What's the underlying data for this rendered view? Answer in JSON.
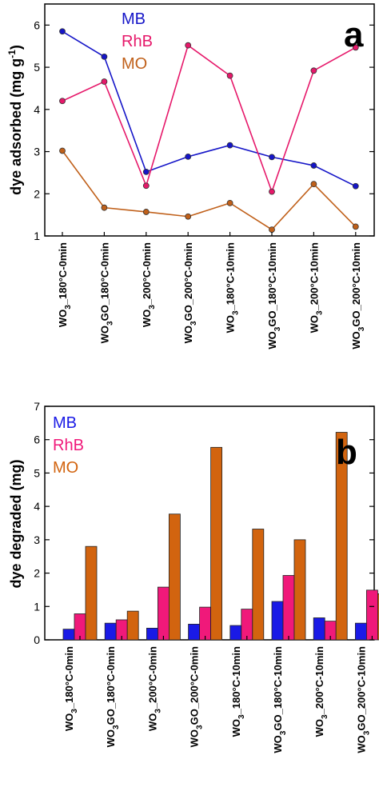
{
  "chart_data": [
    {
      "type": "line",
      "panel_label": "a",
      "ylabel": "dye adsorbed (mg g-1)",
      "ylim": [
        1,
        6.5
      ],
      "yticks": [
        "1",
        "2",
        "3",
        "4",
        "5",
        "6"
      ],
      "categories": [
        "WO3_180°C-0min",
        "WO3GO_180°C-0min",
        "WO3_200°C-0min",
        "WO3GO_200°C-0min",
        "WO3_180°C-10min",
        "WO3GO_180°C-10min",
        "WO3_200°C-10min",
        "WO3GO_200°C-10min"
      ],
      "legend_position": "top-right",
      "series": [
        {
          "name": "MB",
          "color": "#1515c8",
          "values": [
            5.85,
            5.25,
            2.52,
            2.88,
            3.15,
            2.87,
            2.67,
            2.18
          ]
        },
        {
          "name": "RhB",
          "color": "#e6186a",
          "values": [
            4.2,
            4.66,
            2.19,
            5.52,
            4.8,
            2.05,
            4.92,
            5.47
          ]
        },
        {
          "name": "MO",
          "color": "#c0601a",
          "values": [
            3.02,
            1.67,
            1.57,
            1.46,
            1.78,
            1.15,
            2.23,
            1.22
          ]
        }
      ]
    },
    {
      "type": "bar",
      "panel_label": "b",
      "ylabel": "dye degraded (mg)",
      "ylim": [
        0,
        7
      ],
      "yticks": [
        "0",
        "1",
        "2",
        "3",
        "4",
        "5",
        "6",
        "7"
      ],
      "categories": [
        "WO3_180°C-0min",
        "WO3GO_180°C-0min",
        "WO3_200°C-0min",
        "WO3GO_200°C-0min",
        "WO3_180°C-10min",
        "WO3GO_180°C-10min",
        "WO3_200°C-10min",
        "WO3GO_200°C-10min"
      ],
      "legend_position": "top-left",
      "series": [
        {
          "name": "MB",
          "color": "#1a1ae6",
          "values": [
            0.32,
            0.5,
            0.35,
            0.47,
            0.43,
            1.15,
            0.66,
            0.5
          ]
        },
        {
          "name": "RhB",
          "color": "#f0197a",
          "values": [
            0.78,
            0.6,
            1.58,
            0.98,
            0.92,
            1.93,
            0.56,
            1.49
          ]
        },
        {
          "name": "MO",
          "color": "#d2640f",
          "values": [
            2.8,
            0.86,
            3.77,
            5.77,
            3.32,
            3.0,
            6.22,
            1.38
          ]
        }
      ]
    }
  ],
  "category_labels": [
    {
      "a": "WO",
      "b": "3",
      "c": "_180°C-0min"
    },
    {
      "a": "WO",
      "b": "3",
      "c": "GO_180°C-0min"
    },
    {
      "a": "WO",
      "b": "3",
      "c": "_200°C-0min"
    },
    {
      "a": "WO",
      "b": "3",
      "c": "GO_200°C-0min"
    },
    {
      "a": "WO",
      "b": "3",
      "c": "_180°C-10min"
    },
    {
      "a": "WO",
      "b": "3",
      "c": "GO_180°C-10min"
    },
    {
      "a": "WO",
      "b": "3",
      "c": "_200°C-10min"
    },
    {
      "a": "WO",
      "b": "3",
      "c": "GO_200°C-10min"
    }
  ],
  "ylabel_a_parts": {
    "main": "dye adsorbed (mg g",
    "sup": "-1",
    "end": ")"
  }
}
